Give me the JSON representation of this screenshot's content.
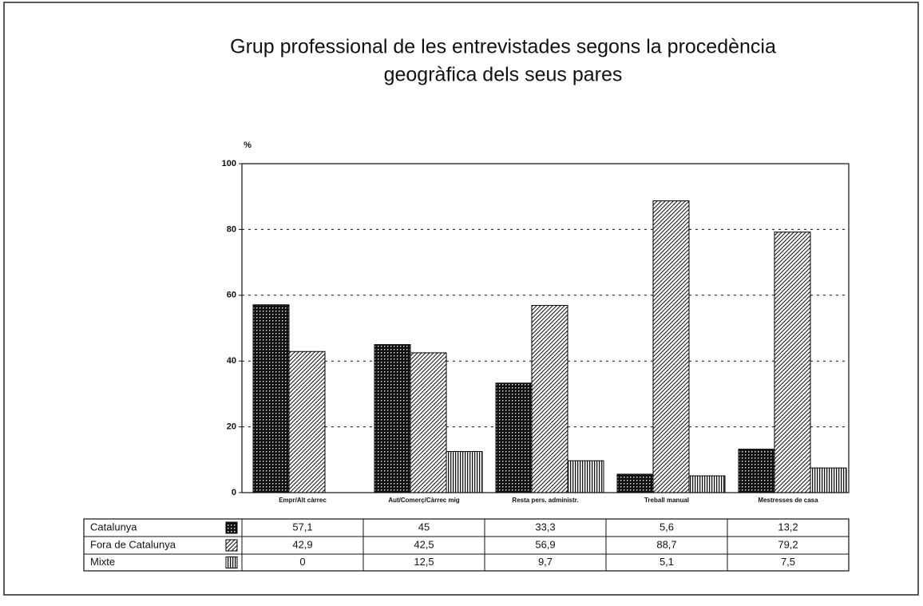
{
  "chart_data": {
    "type": "bar",
    "title": [
      "Grup professional de les entrevistades segons la procedència",
      "geogràfica dels seus pares"
    ],
    "y_label": "%",
    "categories": [
      "Empr/Alt càrrec",
      "Aut/Comerç/Càrrec mig",
      "Resta pers. administr.",
      "Treball manual",
      "Mestresses de casa"
    ],
    "series": [
      {
        "name": "Catalunya",
        "color": "#000000",
        "pattern": "cross",
        "values": [
          57.1,
          45,
          33.3,
          5.6,
          13.2
        ],
        "value_labels": [
          "57,1",
          "45",
          "33,3",
          "5,6",
          "13,2"
        ]
      },
      {
        "name": "Fora de Catalunya",
        "color": "#000000",
        "pattern": "diagonal",
        "values": [
          42.9,
          42.5,
          56.9,
          88.7,
          79.2
        ],
        "value_labels": [
          "42,9",
          "42,5",
          "56,9",
          "88,7",
          "79,2"
        ]
      },
      {
        "name": "Mixte",
        "color": "#000000",
        "pattern": "vertical",
        "values": [
          0,
          12.5,
          9.7,
          5.1,
          7.5
        ],
        "value_labels": [
          "0",
          "12,5",
          "9,7",
          "5,1",
          "7,5"
        ]
      }
    ],
    "ylim": [
      0,
      100
    ],
    "yticks": [
      0,
      20,
      40,
      60,
      80,
      100
    ],
    "grid": true
  }
}
